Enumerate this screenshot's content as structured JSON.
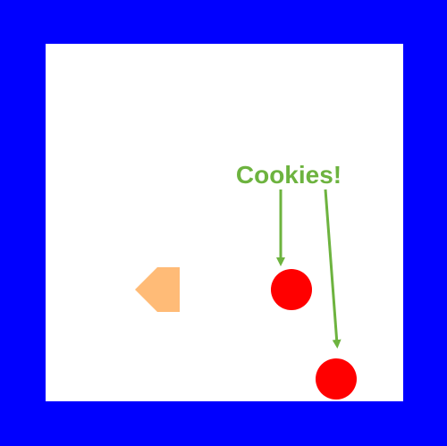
{
  "colors": {
    "wall": "#0000ff",
    "floor": "#ffffff",
    "player": "#ffbb77",
    "cookie": "#ff0000",
    "annotation": "#6db33f"
  },
  "annotation": {
    "text": "Cookies!"
  },
  "entities": {
    "player": {
      "icon": "player-pentagon-icon",
      "facing": "left"
    },
    "cookies": [
      {
        "icon": "cookie-icon"
      },
      {
        "icon": "cookie-icon"
      }
    ]
  }
}
